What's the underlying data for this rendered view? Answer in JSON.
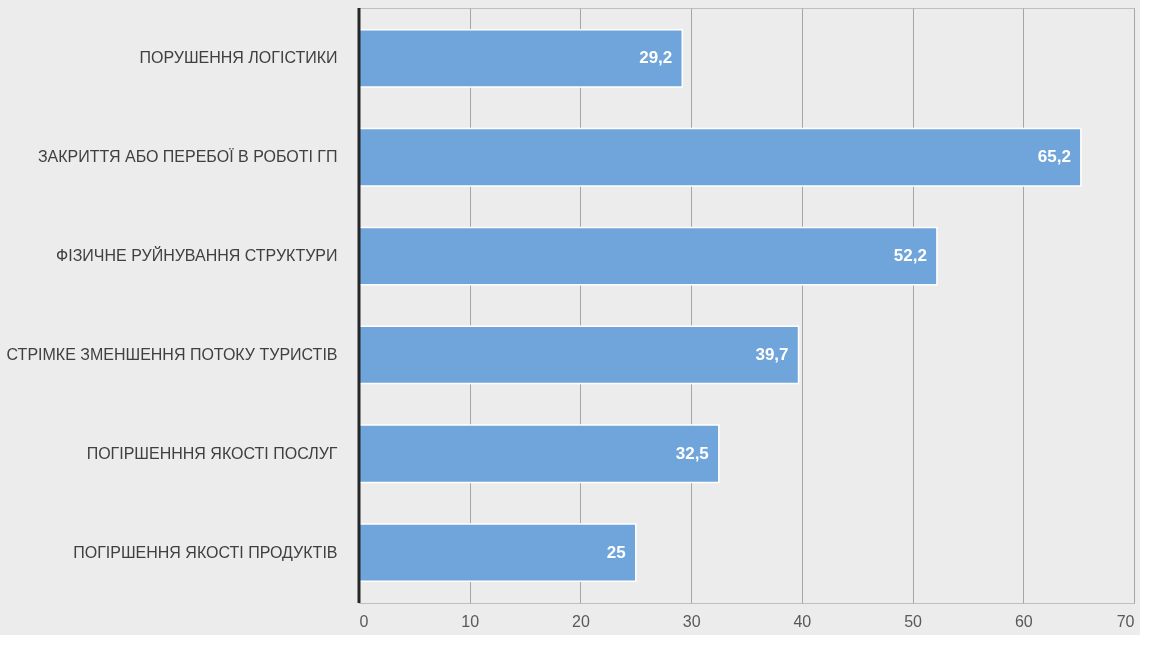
{
  "chart_data": {
    "type": "bar",
    "orientation": "horizontal",
    "categories": [
      "ПОРУШЕННЯ ЛОГІСТИКИ",
      "ЗАКРИТТЯ АБО ПЕРЕБОЇ В РОБОТІ ГП",
      "ФІЗИЧНЕ РУЙНУВАННЯ СТРУКТУРИ ",
      "СТРІМКЕ ЗМЕНШЕННЯ ПОТОКУ ТУРИСТІВ",
      "ПОГІРШЕНННЯ ЯКОСТІ ПОСЛУГ ",
      "ПОГІРШЕННЯ ЯКОСТІ ПРОДУКТІВ"
    ],
    "values": [
      29.2,
      65.2,
      52.2,
      39.7,
      32.5,
      25
    ],
    "color": "#6fa5da",
    "xlim": [
      0,
      70
    ],
    "xticks": [
      0,
      10,
      20,
      30,
      40,
      50,
      60,
      70
    ],
    "value_labels": [
      "29,2",
      "65,2",
      "52,2",
      "39,7",
      "32,5",
      "25"
    ],
    "grid": "x"
  }
}
